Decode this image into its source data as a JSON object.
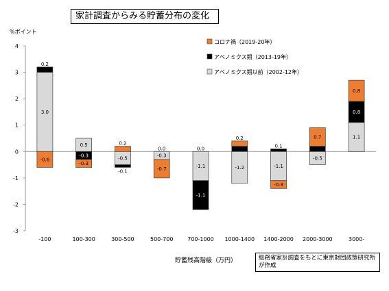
{
  "chart_data": {
    "type": "bar",
    "stacked": true,
    "title": "家計調査からみる貯蓄分布の変化",
    "ylabel": "%ポイント",
    "xlabel": "貯蓄残高階級（万円）",
    "note": "総務省家計調査をもとに東京財団政策研究所が作成",
    "categories": [
      "-100",
      "100-300",
      "300-500",
      "500-700",
      "700-1000",
      "1000-1400",
      "1400-2000",
      "2000-3000",
      "3000-"
    ],
    "ylim": [
      -3,
      4
    ],
    "yticks": [
      "4",
      "3",
      "2",
      "1",
      "0",
      "-1",
      "-2",
      "-3"
    ],
    "grid": false,
    "legend_position": "top-right",
    "series": [
      {
        "name": "アベノミクス期以前（2002-12年）",
        "color": "#d9d9d9",
        "values": [
          3.0,
          0.5,
          -0.5,
          -0.3,
          -1.1,
          -1.2,
          -1.1,
          -0.5,
          1.1
        ],
        "labels": [
          "3.0",
          "0.5",
          "-0.5",
          "-0.3",
          "-1.1",
          "-1.2",
          "-1.1",
          "-0.5",
          "1.1"
        ]
      },
      {
        "name": "アベノミクス期（2013-19年）",
        "color": "#000000",
        "values": [
          0.2,
          -0.3,
          -0.1,
          0.0,
          -1.1,
          0.2,
          0.1,
          0.2,
          0.8
        ],
        "labels": [
          "0.2",
          "-0.3",
          "-0.1",
          "0.0",
          "-1.1",
          "0.2",
          "0.1",
          "0.2",
          "0.8"
        ]
      },
      {
        "name": "コロナ禍（2019-20年）",
        "color": "#ed7d31",
        "values": [
          -0.6,
          -0.3,
          0.2,
          -0.7,
          0.0,
          0.2,
          -0.3,
          0.7,
          0.8
        ],
        "labels": [
          "-0.6",
          "-0.3",
          "0.2",
          "-0.7",
          "0.0",
          "0.2",
          "-0.3",
          "0.7",
          "0.8"
        ]
      }
    ],
    "legend_order": [
      "コロナ禍（2019-20年）",
      "アベノミクス期（2013-19年）",
      "アベノミクス期以前（2002-12年）"
    ]
  }
}
